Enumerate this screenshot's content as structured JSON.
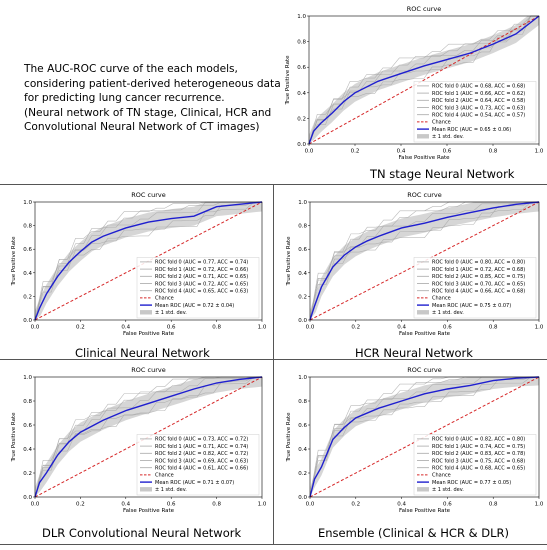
{
  "intro": {
    "lines": [
      "The AUC-ROC curve of the each models,",
      "considering patient-derived heterogeneous data",
      "for predicting lung cancer recurrence.",
      "(Neural network of TN stage, Clinical, HCR and",
      "Convolutional Neural Network of CT images)"
    ]
  },
  "colors": {
    "chance": "#d62728",
    "mean": "#1f1fcf",
    "band": "#c8c8c8",
    "fold": "#a8a8a8",
    "separator": "#555555"
  },
  "chart_data": [
    {
      "type": "line",
      "caption": "TN stage Neural Network",
      "title": "ROC curve",
      "xlabel": "False Positive Rate",
      "ylabel": "True Positive Rate",
      "xlim": [
        0,
        1
      ],
      "ylim": [
        0,
        1
      ],
      "xticks": [
        "0.0",
        "0.2",
        "0.4",
        "0.6",
        "0.8",
        "1.0"
      ],
      "yticks": [
        "0.0",
        "0.2",
        "0.4",
        "0.6",
        "0.8",
        "1.0"
      ],
      "legend_position": "lower-right",
      "legend": [
        "ROC fold 0 (AUC = 0.68, ACC = 0.68)",
        "ROC fold 1 (AUC = 0.66, ACC = 0.62)",
        "ROC fold 2 (AUC = 0.64, ACC = 0.58)",
        "ROC fold 3 (AUC = 0.73, ACC = 0.63)",
        "ROC fold 4 (AUC = 0.54, ACC = 0.57)",
        "Chance",
        "Mean ROC (AUC = 0.65 ± 0.06)",
        "± 1 std. dev."
      ],
      "mean_roc": {
        "x": [
          0,
          0.02,
          0.05,
          0.1,
          0.15,
          0.2,
          0.3,
          0.4,
          0.5,
          0.6,
          0.7,
          0.8,
          0.9,
          1.0
        ],
        "y": [
          0,
          0.1,
          0.16,
          0.24,
          0.33,
          0.4,
          0.49,
          0.55,
          0.61,
          0.66,
          0.71,
          0.78,
          0.86,
          1.0
        ]
      },
      "std_band": 0.07,
      "fold_offsets": [
        0.05,
        -0.04,
        0.08,
        -0.07,
        0.02
      ]
    },
    {
      "type": "line",
      "caption": "Clinical Neural Network",
      "title": "ROC curve",
      "xlabel": "False Positive Rate",
      "ylabel": "True Positive Rate",
      "xlim": [
        0,
        1
      ],
      "ylim": [
        0,
        1
      ],
      "xticks": [
        "0.0",
        "0.2",
        "0.4",
        "0.6",
        "0.8",
        "1.0"
      ],
      "yticks": [
        "0.0",
        "0.2",
        "0.4",
        "0.6",
        "0.8",
        "1.0"
      ],
      "legend_position": "lower-right",
      "legend": [
        "ROC fold 0 (AUC = 0.77, ACC = 0.74)",
        "ROC fold 1 (AUC = 0.72, ACC = 0.66)",
        "ROC fold 2 (AUC = 0.71, ACC = 0.65)",
        "ROC fold 3 (AUC = 0.72, ACC = 0.65)",
        "ROC fold 4 (AUC = 0.65, ACC = 0.63)",
        "Chance",
        "Mean ROC (AUC = 0.72 ± 0.04)",
        "± 1 std. dev."
      ],
      "mean_roc": {
        "x": [
          0,
          0.02,
          0.05,
          0.1,
          0.15,
          0.2,
          0.25,
          0.3,
          0.4,
          0.5,
          0.6,
          0.7,
          0.8,
          0.9,
          1.0
        ],
        "y": [
          0,
          0.1,
          0.22,
          0.37,
          0.49,
          0.58,
          0.66,
          0.71,
          0.78,
          0.83,
          0.86,
          0.88,
          0.96,
          0.98,
          1.0
        ]
      },
      "std_band": 0.08,
      "fold_offsets": [
        0.07,
        -0.06,
        0.1,
        -0.09,
        0.03
      ]
    },
    {
      "type": "line",
      "caption": "HCR Neural Network",
      "title": "ROC curve",
      "xlabel": "False Positive Rate",
      "ylabel": "True Positive Rate",
      "xlim": [
        0,
        1
      ],
      "ylim": [
        0,
        1
      ],
      "xticks": [
        "0.0",
        "0.2",
        "0.4",
        "0.6",
        "0.8",
        "1.0"
      ],
      "yticks": [
        "0.0",
        "0.2",
        "0.4",
        "0.6",
        "0.8",
        "1.0"
      ],
      "legend_position": "lower-right",
      "legend": [
        "ROC fold 0 (AUC = 0.80, ACC = 0.80)",
        "ROC fold 1 (AUC = 0.72, ACC = 0.68)",
        "ROC fold 2 (AUC = 0.85, ACC = 0.75)",
        "ROC fold 3 (AUC = 0.70, ACC = 0.65)",
        "ROC fold 4 (AUC = 0.66, ACC = 0.68)",
        "Chance",
        "Mean ROC (AUC = 0.75 ± 0.07)",
        "± 1 std. dev."
      ],
      "mean_roc": {
        "x": [
          0,
          0.02,
          0.05,
          0.1,
          0.15,
          0.2,
          0.25,
          0.3,
          0.4,
          0.5,
          0.6,
          0.7,
          0.8,
          0.9,
          1.0
        ],
        "y": [
          0,
          0.12,
          0.28,
          0.45,
          0.55,
          0.62,
          0.67,
          0.71,
          0.78,
          0.82,
          0.87,
          0.91,
          0.95,
          0.98,
          1.0
        ]
      },
      "std_band": 0.08,
      "fold_offsets": [
        0.08,
        -0.07,
        0.11,
        -0.1,
        0.02
      ]
    },
    {
      "type": "line",
      "caption": "DLR Convolutional Neural Network",
      "title": "ROC curve",
      "xlabel": "False Positive Rate",
      "ylabel": "True Positive Rate",
      "xlim": [
        0,
        1
      ],
      "ylim": [
        0,
        1
      ],
      "xticks": [
        "0.0",
        "0.2",
        "0.4",
        "0.6",
        "0.8",
        "1.0"
      ],
      "yticks": [
        "0.0",
        "0.2",
        "0.4",
        "0.6",
        "0.8",
        "1.0"
      ],
      "legend_position": "lower-right",
      "legend": [
        "ROC fold 0 (AUC = 0.73, ACC = 0.72)",
        "ROC fold 1 (AUC = 0.71, ACC = 0.74)",
        "ROC fold 2 (AUC = 0.82, ACC = 0.72)",
        "ROC fold 3 (AUC = 0.69, ACC = 0.63)",
        "ROC fold 4 (AUC = 0.61, ACC = 0.66)",
        "Chance",
        "Mean ROC (AUC = 0.71 ± 0.07)",
        "± 1 std. dev."
      ],
      "mean_roc": {
        "x": [
          0,
          0.02,
          0.05,
          0.1,
          0.15,
          0.2,
          0.3,
          0.4,
          0.5,
          0.6,
          0.7,
          0.8,
          0.9,
          1.0
        ],
        "y": [
          0,
          0.12,
          0.2,
          0.35,
          0.46,
          0.54,
          0.64,
          0.72,
          0.78,
          0.84,
          0.9,
          0.95,
          0.98,
          1.0
        ]
      },
      "std_band": 0.08,
      "fold_offsets": [
        0.07,
        -0.08,
        0.1,
        -0.06,
        0.03
      ]
    },
    {
      "type": "line",
      "caption": "Ensemble (Clinical & HCR & DLR)",
      "title": "ROC curve",
      "xlabel": "False Positive Rate",
      "ylabel": "True Positive Rate",
      "xlim": [
        0,
        1
      ],
      "ylim": [
        0,
        1
      ],
      "xticks": [
        "0.0",
        "0.2",
        "0.4",
        "0.6",
        "0.8",
        "1.0"
      ],
      "yticks": [
        "0.0",
        "0.2",
        "0.4",
        "0.6",
        "0.8",
        "1.0"
      ],
      "legend_position": "lower-right",
      "legend": [
        "ROC fold 0 (AUC = 0.82, ACC = 0.80)",
        "ROC fold 1 (AUC = 0.74, ACC = 0.75)",
        "ROC fold 2 (AUC = 0.83, ACC = 0.78)",
        "ROC fold 3 (AUC = 0.75, ACC = 0.68)",
        "ROC fold 4 (AUC = 0.68, ACC = 0.65)",
        "Chance",
        "Mean ROC (AUC = 0.77 ± 0.05)",
        "± 1 std. dev."
      ],
      "mean_roc": {
        "x": [
          0,
          0.02,
          0.05,
          0.1,
          0.15,
          0.2,
          0.3,
          0.4,
          0.5,
          0.6,
          0.7,
          0.8,
          0.9,
          1.0
        ],
        "y": [
          0,
          0.15,
          0.25,
          0.48,
          0.58,
          0.66,
          0.74,
          0.8,
          0.86,
          0.9,
          0.93,
          0.97,
          0.99,
          1.0
        ]
      },
      "std_band": 0.07,
      "fold_offsets": [
        0.07,
        -0.07,
        0.1,
        -0.08,
        0.02
      ]
    }
  ]
}
